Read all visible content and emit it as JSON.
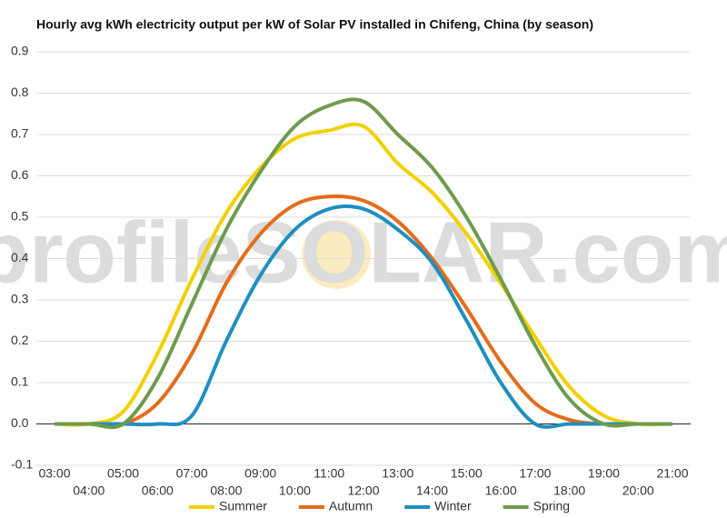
{
  "chart_data": {
    "type": "line",
    "title": "Hourly avg kWh electricity output per kW of Solar PV installed in Chifeng, China (by season)",
    "watermark": "profileSOLAR.com",
    "categories": [
      "03:00",
      "04:00",
      "05:00",
      "06:00",
      "07:00",
      "08:00",
      "09:00",
      "10:00",
      "11:00",
      "12:00",
      "13:00",
      "14:00",
      "15:00",
      "16:00",
      "17:00",
      "18:00",
      "19:00",
      "20:00",
      "21:00"
    ],
    "series": [
      {
        "name": "Summer",
        "color": "#f2d000",
        "values": [
          0,
          0,
          0.03,
          0.17,
          0.35,
          0.51,
          0.62,
          0.69,
          0.71,
          0.72,
          0.63,
          0.56,
          0.46,
          0.34,
          0.21,
          0.09,
          0.02,
          0,
          0
        ]
      },
      {
        "name": "Autumn",
        "color": "#e46c1b",
        "values": [
          0,
          0,
          0,
          0.05,
          0.17,
          0.34,
          0.46,
          0.53,
          0.55,
          0.54,
          0.49,
          0.4,
          0.28,
          0.15,
          0.05,
          0.01,
          0,
          0,
          0
        ]
      },
      {
        "name": "Winter",
        "color": "#1f8fc0",
        "values": [
          0,
          0,
          0,
          0,
          0.02,
          0.2,
          0.36,
          0.47,
          0.52,
          0.52,
          0.47,
          0.39,
          0.25,
          0.1,
          0,
          0,
          0,
          0,
          0
        ]
      },
      {
        "name": "Spring",
        "color": "#6e9b4c",
        "values": [
          0,
          0,
          0,
          0.11,
          0.29,
          0.47,
          0.61,
          0.72,
          0.77,
          0.78,
          0.7,
          0.62,
          0.5,
          0.35,
          0.19,
          0.06,
          0,
          0,
          0
        ]
      }
    ],
    "ylim": [
      -0.1,
      0.9
    ],
    "yticks": [
      -0.1,
      {
        "value": 0,
        "label": "0.0"
      },
      0.1,
      0.2,
      0.3,
      0.4,
      0.5,
      0.6,
      0.7,
      0.8,
      0.9
    ],
    "grid": true
  }
}
